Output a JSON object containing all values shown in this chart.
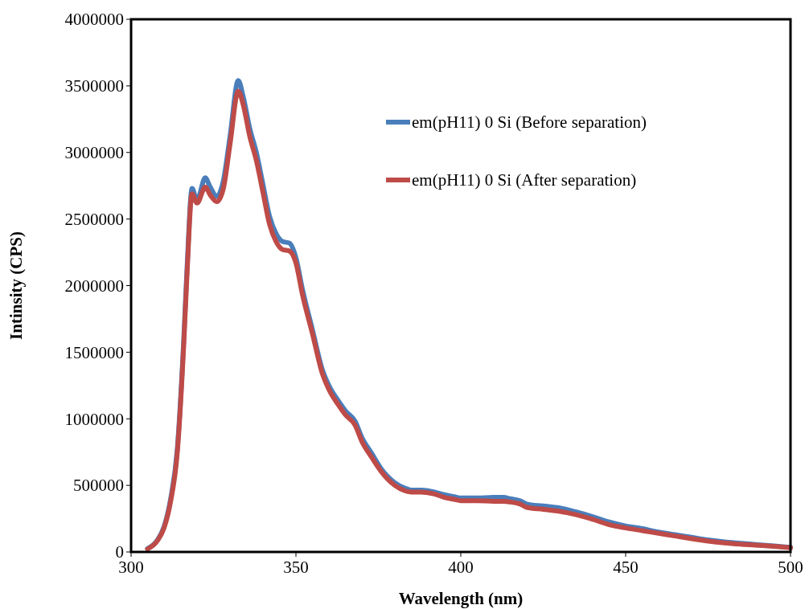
{
  "chart_data": {
    "type": "line",
    "xlabel": "Wavelength (nm)",
    "ylabel": "Intinsity (CPS)",
    "x": [
      305,
      308,
      310,
      312,
      314,
      316,
      317,
      318.5,
      320,
      322.5,
      324,
      326,
      328,
      330,
      332.5,
      334,
      336,
      338,
      340,
      342,
      344,
      346,
      348,
      350,
      352,
      355,
      358,
      360,
      363,
      365,
      368,
      370,
      373,
      376,
      380,
      383,
      385,
      388,
      390,
      392,
      395,
      398,
      400,
      405,
      410,
      413,
      415,
      418,
      420,
      425,
      430,
      435,
      440,
      445,
      450,
      455,
      460,
      465,
      470,
      475,
      480,
      485,
      490,
      495,
      500
    ],
    "series": [
      {
        "name": "em(pH11) 0 Si (Before separation)",
        "color": "#4a7ebb",
        "values": [
          25000,
          90000,
          190000,
          400000,
          770000,
          1610000,
          2150000,
          2730000,
          2640000,
          2810000,
          2740000,
          2670000,
          2790000,
          3120000,
          3540000,
          3420000,
          3180000,
          3000000,
          2760000,
          2520000,
          2390000,
          2330000,
          2320000,
          2210000,
          1970000,
          1670000,
          1370000,
          1250000,
          1130000,
          1060000,
          980000,
          860000,
          740000,
          620000,
          520000,
          480000,
          465000,
          465000,
          460000,
          450000,
          430000,
          415000,
          405000,
          405000,
          410000,
          410000,
          400000,
          385000,
          360000,
          345000,
          330000,
          300000,
          265000,
          225000,
          195000,
          175000,
          150000,
          130000,
          110000,
          90000,
          75000,
          65000,
          55000,
          45000,
          35000
        ]
      },
      {
        "name": "em(pH11) 0 Si (After separation)",
        "color": "#be4b48",
        "values": [
          22000,
          85000,
          180000,
          380000,
          740000,
          1570000,
          2100000,
          2690000,
          2620000,
          2740000,
          2680000,
          2630000,
          2730000,
          3060000,
          3460000,
          3360000,
          3120000,
          2940000,
          2700000,
          2460000,
          2330000,
          2270000,
          2260000,
          2170000,
          1930000,
          1640000,
          1340000,
          1220000,
          1100000,
          1030000,
          950000,
          830000,
          710000,
          600000,
          500000,
          460000,
          450000,
          450000,
          445000,
          435000,
          410000,
          395000,
          385000,
          385000,
          380000,
          380000,
          375000,
          360000,
          335000,
          320000,
          305000,
          280000,
          245000,
          205000,
          180000,
          160000,
          140000,
          120000,
          100000,
          82000,
          68000,
          58000,
          50000,
          42000,
          32000
        ]
      }
    ],
    "xlim": [
      300,
      500
    ],
    "xticks": [
      300,
      350,
      400,
      450,
      500
    ],
    "ylim": [
      0,
      4000000
    ],
    "yticks": [
      0,
      500000,
      1000000,
      1500000,
      2000000,
      2500000,
      3000000,
      3500000,
      4000000
    ],
    "grid": false,
    "legend": "top right",
    "marker": "none",
    "line_style": "solid"
  }
}
